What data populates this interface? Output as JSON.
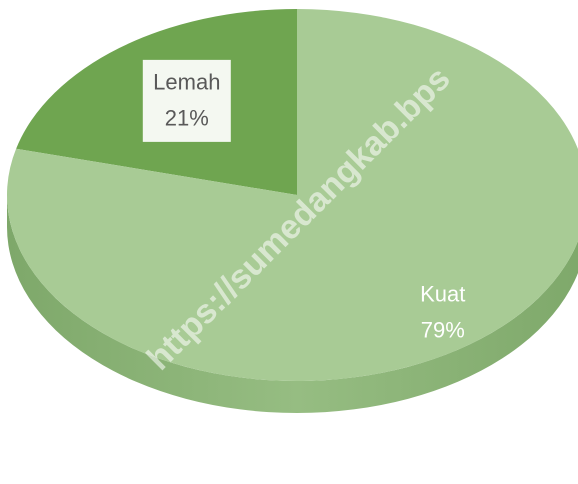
{
  "chart_data": {
    "type": "pie",
    "categories": [
      "Lemah",
      "Kuat"
    ],
    "values": [
      21,
      79
    ],
    "value_labels": [
      "21%",
      "79%"
    ],
    "colors": [
      "#6fa550",
      "#a8cb95"
    ],
    "watermark": "https://sumedangkab.bps"
  }
}
